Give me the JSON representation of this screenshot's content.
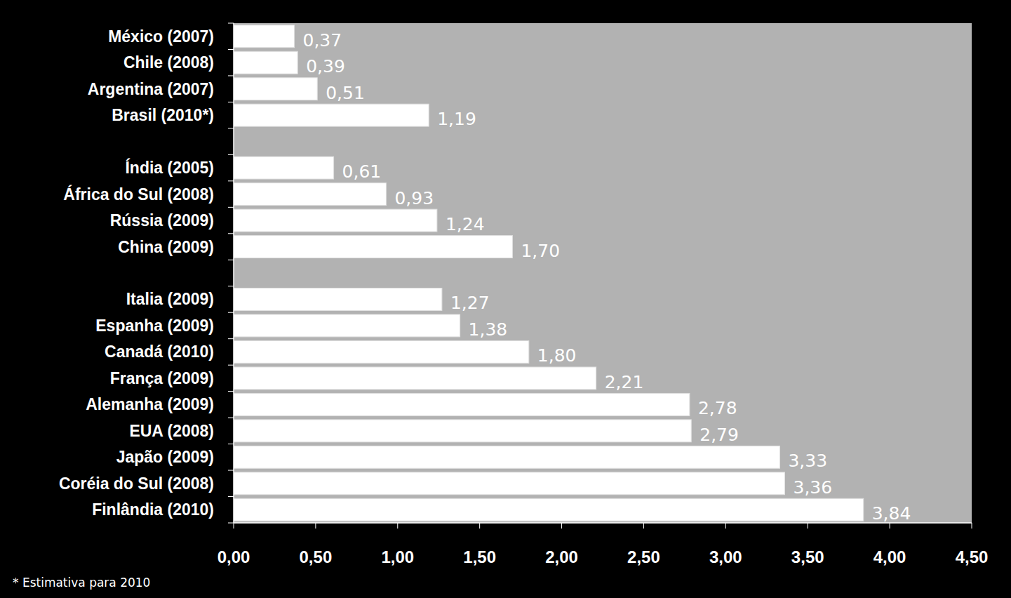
{
  "chart_data": {
    "type": "bar",
    "orientation": "horizontal",
    "categories": [
      "México (2007)",
      "Chile (2008)",
      "Argentina (2007)",
      "Brasil (2010*)",
      null,
      "Índia (2005)",
      "África do Sul (2008)",
      "Rússia (2009)",
      "China (2009)",
      null,
      "Italia (2009)",
      "Espanha (2009)",
      "Canadá (2010)",
      "França (2009)",
      "Alemanha (2009)",
      "EUA (2008)",
      "Japão (2009)",
      "Coréia do Sul (2008)",
      "Finlândia (2010)"
    ],
    "values": [
      0.37,
      0.39,
      0.51,
      1.19,
      null,
      0.61,
      0.93,
      1.24,
      1.7,
      null,
      1.27,
      1.38,
      1.8,
      2.21,
      2.78,
      2.79,
      3.33,
      3.36,
      3.84
    ],
    "value_labels": [
      "0,37",
      "0,39",
      "0,51",
      "1,19",
      null,
      "0,61",
      "0,93",
      "1,24",
      "1,70",
      null,
      "1,27",
      "1,38",
      "1,80",
      "2,21",
      "2,78",
      "2,79",
      "3,33",
      "3,36",
      "3,84"
    ],
    "data_labels": true,
    "color": "#ffffff",
    "xlim": [
      0,
      4.5
    ],
    "xticks": [
      {
        "value": 0,
        "label": "0,00"
      },
      {
        "value": 0.5,
        "label": "0,50"
      },
      {
        "value": 1,
        "label": "1,00"
      },
      {
        "value": 1.5,
        "label": "1,50"
      },
      {
        "value": 2,
        "label": "2,00"
      },
      {
        "value": 2.5,
        "label": "2,50"
      },
      {
        "value": 3,
        "label": "3,00"
      },
      {
        "value": 3.5,
        "label": "3,50"
      },
      {
        "value": 4,
        "label": "4,00"
      },
      {
        "value": 4.5,
        "label": "4,50"
      }
    ],
    "grid": false,
    "annotations": [
      "* Estimativa para 2010"
    ]
  }
}
